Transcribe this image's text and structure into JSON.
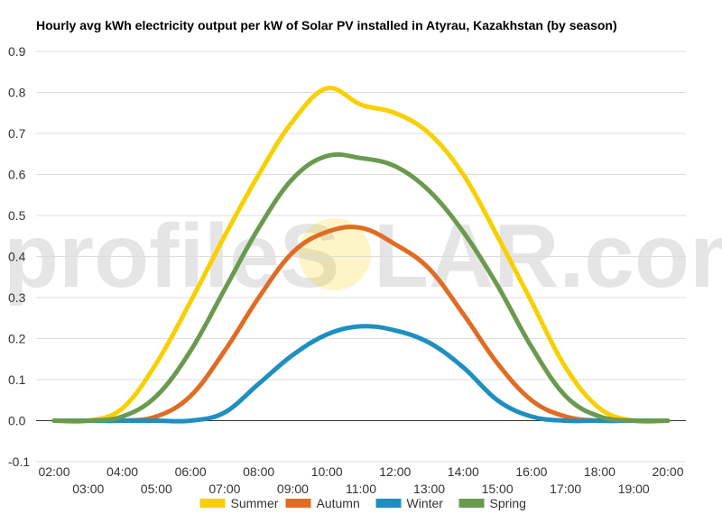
{
  "chart_data": {
    "type": "line",
    "title": "Hourly avg kWh electricity output per kW of Solar PV installed in Atyrau, Kazakhstan (by season)",
    "xlabel": "",
    "ylabel": "",
    "ylim": [
      -0.1,
      0.9
    ],
    "yticks": [
      "-0.1",
      "0.0",
      "0.1",
      "0.2",
      "0.3",
      "0.4",
      "0.5",
      "0.6",
      "0.7",
      "0.8",
      "0.9"
    ],
    "categories": [
      "02:00",
      "03:00",
      "04:00",
      "05:00",
      "06:00",
      "07:00",
      "08:00",
      "09:00",
      "10:00",
      "11:00",
      "12:00",
      "13:00",
      "14:00",
      "15:00",
      "16:00",
      "17:00",
      "18:00",
      "19:00",
      "20:00"
    ],
    "grid": true,
    "legend_position": "bottom",
    "series": [
      {
        "name": "Summer",
        "color": "#f8d000",
        "values": [
          0.0,
          0.0,
          0.03,
          0.14,
          0.29,
          0.45,
          0.6,
          0.73,
          0.81,
          0.77,
          0.75,
          0.7,
          0.6,
          0.45,
          0.29,
          0.13,
          0.03,
          0.0,
          0.0
        ]
      },
      {
        "name": "Autumn",
        "color": "#e06c23",
        "values": [
          0.0,
          0.0,
          0.0,
          0.01,
          0.06,
          0.17,
          0.3,
          0.41,
          0.46,
          0.47,
          0.43,
          0.37,
          0.26,
          0.14,
          0.05,
          0.01,
          0.0,
          0.0,
          0.0
        ]
      },
      {
        "name": "Winter",
        "color": "#1f8fc0",
        "values": [
          0.0,
          0.0,
          0.0,
          0.0,
          0.0,
          0.02,
          0.09,
          0.16,
          0.21,
          0.23,
          0.22,
          0.19,
          0.13,
          0.05,
          0.01,
          0.0,
          0.0,
          0.0,
          0.0
        ]
      },
      {
        "name": "Spring",
        "color": "#6b9a4f",
        "values": [
          0.0,
          0.0,
          0.01,
          0.06,
          0.17,
          0.32,
          0.47,
          0.59,
          0.645,
          0.64,
          0.62,
          0.56,
          0.46,
          0.33,
          0.18,
          0.06,
          0.01,
          0.0,
          0.0
        ]
      }
    ]
  },
  "watermark": {
    "left": "profileS",
    "right": "LAR.com",
    "sun_color": "#f8d000"
  }
}
